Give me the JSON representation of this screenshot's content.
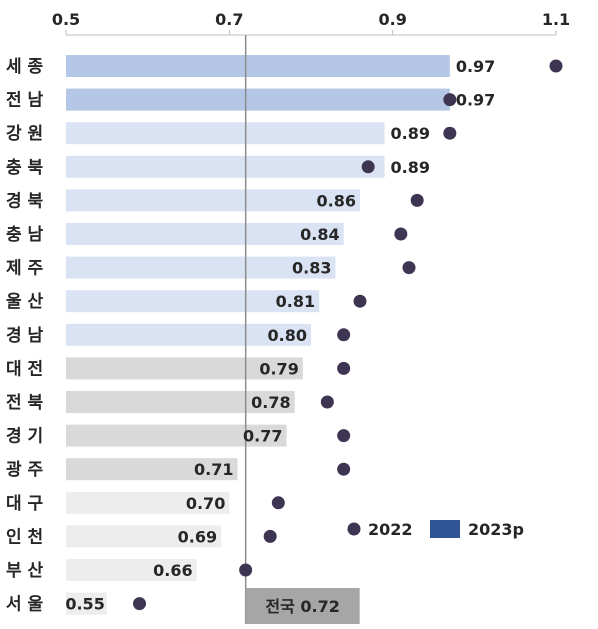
{
  "chart_data": {
    "type": "bar",
    "title": "",
    "xlabel": "",
    "ylabel": "",
    "xlim": [
      0.5,
      1.1
    ],
    "x_ticks": [
      "0.5",
      "0.7",
      "0.9",
      "1.1"
    ],
    "categories": [
      "세 종",
      "전 남",
      "강 원",
      "충 북",
      "경 북",
      "충 남",
      "제 주",
      "울 산",
      "경 남",
      "대 전",
      "전 북",
      "경 기",
      "광 주",
      "대 구",
      "인 천",
      "부 산",
      "서 울"
    ],
    "series": [
      {
        "name": "2023p",
        "type": "bar",
        "color": "#2f5496",
        "values": [
          0.97,
          0.97,
          0.89,
          0.89,
          0.86,
          0.84,
          0.83,
          0.81,
          0.8,
          0.79,
          0.78,
          0.77,
          0.71,
          0.7,
          0.69,
          0.66,
          0.55
        ],
        "value_labels": [
          "0.97",
          "0.97",
          "0.89",
          "0.89",
          "0.86",
          "0.84",
          "0.83",
          "0.81",
          "0.80",
          "0.79",
          "0.78",
          "0.77",
          "0.71",
          "0.70",
          "0.69",
          "0.66",
          "0.55"
        ],
        "bar_colors": [
          "#b4c7e7",
          "#b4c7e7",
          "#dae3f3",
          "#dae3f3",
          "#dae3f3",
          "#dae3f3",
          "#dae3f3",
          "#dae3f3",
          "#dae3f3",
          "#d9d9d9",
          "#d9d9d9",
          "#d9d9d9",
          "#d9d9d9",
          "#ededed",
          "#ededed",
          "#ededed",
          "#ededed"
        ]
      },
      {
        "name": "2022",
        "type": "scatter",
        "color": "#3d3552",
        "values": [
          1.1,
          0.97,
          0.97,
          0.87,
          0.93,
          0.91,
          0.92,
          0.86,
          0.84,
          0.84,
          0.82,
          0.84,
          0.84,
          0.76,
          0.75,
          0.72,
          0.59
        ]
      }
    ],
    "reference_line": {
      "label": "전국 0.72",
      "value": 0.72
    },
    "legend": {
      "position": "bottom-right",
      "entries": [
        "2022",
        "2023p"
      ]
    },
    "grid": false
  }
}
